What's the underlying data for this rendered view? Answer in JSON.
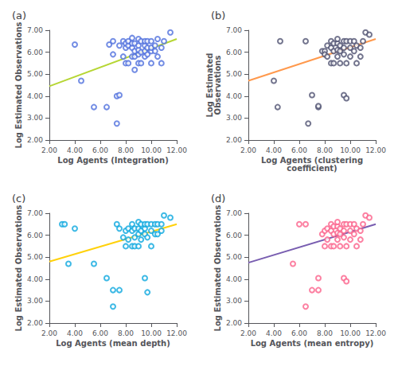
{
  "chart_data": [
    {
      "type": "scatter",
      "title": "(a)",
      "xlabel": "Log Agents (Integration)",
      "ylabel": "Log Estimated Observations",
      "xlim": [
        2.0,
        12.0
      ],
      "ylim": [
        2.0,
        7.0
      ],
      "xticks": [
        {
          "value": 2.0,
          "label": "2.00"
        },
        {
          "value": 4.0,
          "label": "4.00"
        },
        {
          "value": 6.0,
          "label": "6.00"
        },
        {
          "value": 8.0,
          "label": "8.00"
        },
        {
          "value": 10.0,
          "label": "10.00"
        },
        {
          "value": 12.0,
          "label": "12.00"
        }
      ],
      "yticks": [
        {
          "value": 2.0,
          "label": "2.00"
        },
        {
          "value": 3.0,
          "label": "3.00"
        },
        {
          "value": 4.0,
          "label": "4.00"
        },
        {
          "value": 5.0,
          "label": "5.00"
        },
        {
          "value": 6.0,
          "label": "6.00"
        },
        {
          "value": 7.0,
          "label": "7.00"
        }
      ],
      "grid": false,
      "series": [
        {
          "type": "scatter",
          "marker": "circle",
          "x": [
            4.0,
            4.5,
            5.5,
            6.5,
            6.7,
            7.0,
            7.0,
            7.3,
            7.3,
            7.5,
            7.5,
            7.8,
            7.8,
            8.0,
            8.0,
            8.0,
            8.2,
            8.2,
            8.2,
            8.5,
            8.5,
            8.5,
            8.5,
            8.7,
            8.7,
            8.7,
            8.7,
            9.0,
            9.0,
            9.0,
            9.0,
            9.0,
            9.2,
            9.2,
            9.2,
            9.5,
            9.5,
            9.5,
            9.5,
            9.7,
            9.7,
            9.7,
            10.0,
            10.0,
            10.0,
            10.0,
            10.3,
            10.3,
            10.5,
            10.5,
            10.8,
            10.8,
            11.0,
            11.5
          ],
          "values": [
            6.35,
            4.7,
            3.5,
            3.5,
            6.35,
            6.5,
            5.9,
            2.75,
            4.0,
            4.05,
            6.3,
            5.8,
            6.5,
            5.5,
            6.2,
            6.4,
            5.5,
            6.3,
            6.5,
            5.8,
            6.2,
            6.4,
            6.65,
            5.2,
            5.8,
            6.05,
            6.4,
            5.5,
            5.9,
            6.1,
            6.3,
            6.6,
            5.5,
            6.0,
            6.5,
            5.8,
            6.05,
            6.3,
            6.5,
            5.9,
            6.2,
            6.5,
            5.5,
            6.05,
            6.2,
            6.5,
            6.05,
            6.3,
            5.8,
            6.6,
            5.5,
            6.2,
            6.5,
            6.9
          ]
        },
        {
          "type": "line",
          "x": [
            2.0,
            12.0
          ],
          "values": [
            4.45,
            6.6
          ]
        }
      ]
    },
    {
      "type": "scatter",
      "title": "(b)",
      "xlabel": "Log Agents (clustering\ncoefficient)",
      "ylabel": "Log Estimated\nObservations",
      "xlim": [
        2.0,
        12.0
      ],
      "ylim": [
        2.0,
        7.0
      ],
      "xticks": [
        {
          "value": 2.0,
          "label": "2.00"
        },
        {
          "value": 4.0,
          "label": "4.00"
        },
        {
          "value": 6.0,
          "label": "6.00"
        },
        {
          "value": 8.0,
          "label": "8.00"
        },
        {
          "value": 10.0,
          "label": "10.00"
        },
        {
          "value": 12.0,
          "label": "12.00"
        }
      ],
      "yticks": [
        {
          "value": 2.0,
          "label": "2.00"
        },
        {
          "value": 3.0,
          "label": "3.00"
        },
        {
          "value": 4.0,
          "label": "4.00"
        },
        {
          "value": 5.0,
          "label": "5.00"
        },
        {
          "value": 6.0,
          "label": "6.00"
        },
        {
          "value": 7.0,
          "label": "7.00"
        }
      ],
      "grid": false,
      "series": [
        {
          "type": "scatter",
          "marker": "circle",
          "x": [
            4.0,
            4.3,
            4.5,
            6.5,
            6.7,
            7.0,
            7.5,
            7.5,
            7.8,
            8.0,
            8.0,
            8.2,
            8.2,
            8.5,
            8.5,
            8.5,
            8.7,
            8.7,
            8.7,
            9.0,
            9.0,
            9.0,
            9.0,
            9.2,
            9.2,
            9.2,
            9.5,
            9.5,
            9.5,
            9.5,
            9.7,
            9.7,
            9.7,
            10.0,
            10.0,
            10.0,
            10.3,
            10.3,
            10.5,
            10.5,
            10.8,
            10.8,
            11.0,
            11.2,
            11.5
          ],
          "values": [
            4.7,
            3.5,
            6.5,
            6.5,
            2.75,
            4.05,
            3.5,
            3.55,
            6.05,
            6.05,
            5.9,
            6.3,
            5.8,
            5.5,
            6.2,
            6.5,
            5.5,
            6.05,
            6.4,
            5.8,
            6.1,
            6.4,
            6.6,
            5.5,
            6.05,
            6.3,
            5.9,
            6.2,
            6.5,
            4.05,
            3.9,
            5.5,
            6.5,
            5.8,
            6.2,
            6.5,
            6.05,
            6.5,
            5.5,
            6.3,
            5.8,
            6.2,
            6.5,
            6.9,
            6.8
          ]
        },
        {
          "type": "line",
          "x": [
            2.0,
            12.0
          ],
          "values": [
            4.7,
            6.6
          ]
        }
      ]
    },
    {
      "type": "scatter",
      "title": "(c)",
      "xlabel": "Log Agents (mean depth)",
      "ylabel": "Log Estimated Observations",
      "xlim": [
        2.0,
        12.0
      ],
      "ylim": [
        2.0,
        7.0
      ],
      "xticks": [
        {
          "value": 2.0,
          "label": "2.00"
        },
        {
          "value": 4.0,
          "label": "4.00"
        },
        {
          "value": 6.0,
          "label": "6.00"
        },
        {
          "value": 8.0,
          "label": "8.00"
        },
        {
          "value": 10.0,
          "label": "10.00"
        },
        {
          "value": 12.0,
          "label": "12.00"
        }
      ],
      "yticks": [
        {
          "value": 2.0,
          "label": "2.00"
        },
        {
          "value": 3.0,
          "label": "3.00"
        },
        {
          "value": 4.0,
          "label": "4.00"
        },
        {
          "value": 5.0,
          "label": "5.00"
        },
        {
          "value": 6.0,
          "label": "6.00"
        },
        {
          "value": 7.0,
          "label": "7.00"
        }
      ],
      "grid": false,
      "series": [
        {
          "type": "scatter",
          "marker": "circle",
          "x": [
            3.0,
            3.2,
            3.5,
            4.0,
            5.5,
            6.5,
            7.0,
            7.0,
            7.3,
            7.5,
            7.5,
            7.8,
            8.0,
            8.0,
            8.2,
            8.2,
            8.5,
            8.5,
            8.5,
            8.7,
            8.7,
            8.7,
            9.0,
            9.0,
            9.0,
            9.0,
            9.2,
            9.2,
            9.2,
            9.5,
            9.5,
            9.5,
            9.5,
            9.7,
            9.7,
            9.7,
            10.0,
            10.0,
            10.0,
            10.3,
            10.3,
            10.5,
            10.5,
            10.8,
            10.8,
            11.0,
            11.5
          ],
          "values": [
            6.5,
            6.5,
            4.7,
            6.3,
            4.7,
            4.05,
            2.75,
            3.5,
            6.5,
            3.5,
            6.3,
            5.9,
            5.5,
            6.2,
            5.8,
            6.3,
            5.5,
            6.2,
            6.5,
            5.5,
            5.9,
            6.3,
            5.5,
            6.05,
            6.3,
            6.6,
            5.8,
            6.2,
            6.5,
            4.05,
            6.05,
            6.3,
            6.5,
            3.4,
            5.9,
            6.5,
            5.5,
            6.2,
            6.5,
            6.05,
            6.5,
            6.05,
            6.5,
            6.2,
            6.5,
            6.9,
            6.8
          ]
        },
        {
          "type": "line",
          "x": [
            2.0,
            12.0
          ],
          "values": [
            4.8,
            6.5
          ]
        }
      ]
    },
    {
      "type": "scatter",
      "title": "(d)",
      "xlabel": "Log Agents (mean entropy)",
      "ylabel": "Log Estimated Observations",
      "xlim": [
        2.0,
        12.0
      ],
      "ylim": [
        2.0,
        7.0
      ],
      "xticks": [
        {
          "value": 2.0,
          "label": "2.00"
        },
        {
          "value": 4.0,
          "label": "4.00"
        },
        {
          "value": 6.0,
          "label": "6.00"
        },
        {
          "value": 8.0,
          "label": "8.00"
        },
        {
          "value": 10.0,
          "label": "10.00"
        },
        {
          "value": 12.0,
          "label": "12.00"
        }
      ],
      "yticks": [
        {
          "value": 2.0,
          "label": "2.00"
        },
        {
          "value": 3.0,
          "label": "3.00"
        },
        {
          "value": 4.0,
          "label": "4.00"
        },
        {
          "value": 5.0,
          "label": "5.00"
        },
        {
          "value": 6.0,
          "label": "6.00"
        },
        {
          "value": 7.0,
          "label": "7.00"
        }
      ],
      "grid": false,
      "series": [
        {
          "type": "scatter",
          "marker": "circle",
          "x": [
            5.5,
            6.0,
            6.5,
            6.5,
            7.0,
            7.5,
            7.5,
            7.8,
            8.0,
            8.0,
            8.2,
            8.2,
            8.5,
            8.5,
            8.5,
            8.7,
            8.7,
            8.7,
            9.0,
            9.0,
            9.0,
            9.0,
            9.2,
            9.2,
            9.2,
            9.5,
            9.5,
            9.5,
            9.5,
            9.7,
            9.7,
            9.7,
            10.0,
            10.0,
            10.0,
            10.3,
            10.3,
            10.5,
            10.5,
            10.8,
            10.8,
            11.0,
            11.2,
            11.5
          ],
          "values": [
            4.7,
            6.5,
            6.5,
            2.75,
            3.5,
            3.5,
            4.05,
            6.05,
            5.5,
            6.2,
            5.8,
            6.3,
            5.5,
            6.2,
            6.5,
            5.5,
            6.05,
            6.4,
            5.8,
            6.1,
            6.4,
            6.6,
            5.5,
            6.05,
            6.3,
            5.9,
            6.2,
            6.5,
            4.05,
            3.9,
            5.5,
            6.5,
            5.8,
            6.2,
            6.5,
            6.05,
            6.5,
            5.5,
            6.3,
            5.8,
            6.2,
            6.5,
            6.9,
            6.8
          ]
        },
        {
          "type": "line",
          "x": [
            2.0,
            12.0
          ],
          "values": [
            4.75,
            6.5
          ]
        }
      ]
    }
  ]
}
